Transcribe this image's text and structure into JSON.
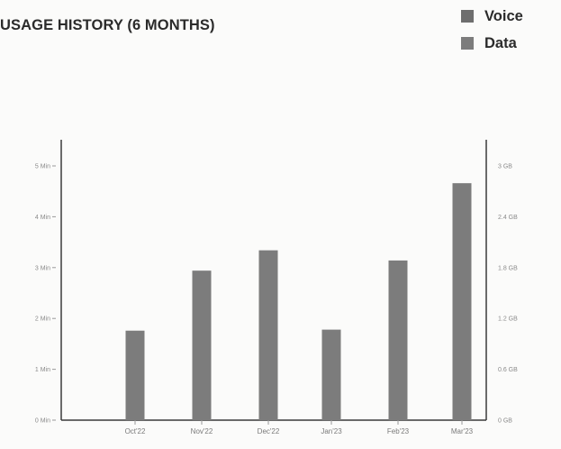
{
  "chart_data": {
    "type": "bar",
    "title": "USAGE HISTORY (6 MONTHS)",
    "categories": [
      "Oct'22",
      "Nov'22",
      "Dec'22",
      "Jan'23",
      "Feb'23",
      "Mar'23"
    ],
    "series": [
      {
        "name": "Voice",
        "values": [
          0,
          0,
          0,
          0,
          0,
          0
        ],
        "color": "#6e6e6e"
      },
      {
        "name": "Data",
        "values": [
          1.76,
          2.94,
          3.34,
          1.78,
          3.14,
          4.66
        ],
        "unit": "Min",
        "color": "#7c7c7c"
      }
    ],
    "y_left": {
      "ylim": [
        0,
        5
      ],
      "ticks": [
        "0 Min",
        "1 Min",
        "2 Min",
        "3 Min",
        "4 Min",
        "5 Min"
      ]
    },
    "y_right": {
      "ylim": [
        0,
        3
      ],
      "ticks": [
        "0 GB",
        "0.6 GB",
        "1.2 GB",
        "1.8 GB",
        "2.4 GB",
        "3 GB"
      ]
    },
    "grid": false,
    "legend_position": "top-right"
  }
}
